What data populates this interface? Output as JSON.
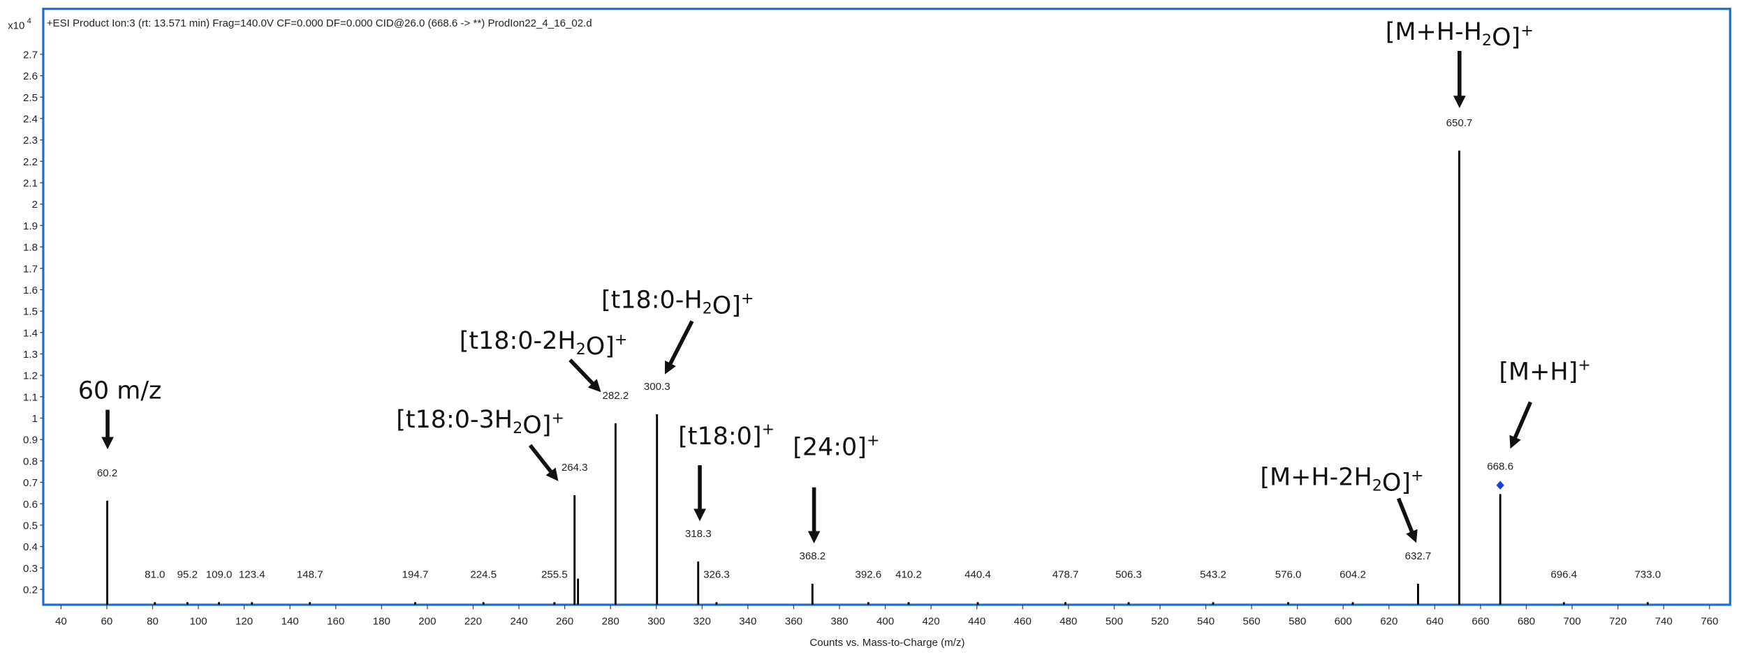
{
  "chart_data": {
    "type": "spectrum",
    "header": "+ESI Product Ion:3 (rt: 13.571 min) Frag=140.0V CF=0.000 DF=0.000 CID@26.0 (668.6 -> **) ProdIon22_4_16_02.d",
    "y_multiplier": {
      "base": "x10",
      "exponent": "4"
    },
    "x_label": "Counts vs. Mass-to-Charge (m/z)",
    "xlim": [
      32.25,
      769
    ],
    "ylim": [
      0.128,
      2.902
    ],
    "xticks": [
      40,
      60,
      80,
      100,
      120,
      140,
      160,
      180,
      200,
      220,
      240,
      260,
      280,
      300,
      320,
      340,
      360,
      380,
      400,
      420,
      440,
      460,
      480,
      500,
      520,
      540,
      560,
      580,
      600,
      620,
      640,
      660,
      680,
      700,
      720,
      740,
      760
    ],
    "yticks": [
      0.2,
      0.3,
      0.4,
      0.5,
      0.6,
      0.7,
      0.8,
      0.9,
      1,
      1.1,
      1.2,
      1.3,
      1.4,
      1.5,
      1.6,
      1.7,
      1.8,
      1.9,
      2,
      2.1,
      2.2,
      2.3,
      2.4,
      2.5,
      2.6,
      2.7
    ],
    "color": "#000000",
    "frame_color": "#1f6fc5",
    "x": [
      60.2,
      81.0,
      95.2,
      109.0,
      123.4,
      148.7,
      194.7,
      224.5,
      255.5,
      264.3,
      265.8,
      282.2,
      300.3,
      318.3,
      326.3,
      368.2,
      392.6,
      410.2,
      440.4,
      478.7,
      506.3,
      543.2,
      576.0,
      604.2,
      632.7,
      650.7,
      668.6,
      696.4,
      733.0
    ],
    "x_labels": [
      "60.2",
      "81.0",
      "95.2",
      "109.0",
      "123.4",
      "148.7",
      "194.7",
      "224.5",
      "255.5",
      "264.3",
      null,
      "282.2",
      "300.3",
      "318.3",
      "326.3",
      "368.2",
      "392.6",
      "410.2",
      "440.4",
      "478.7",
      "506.3",
      "543.2",
      "576.0",
      "604.2",
      "632.7",
      "650.7",
      "668.6",
      "696.4",
      "733.0"
    ],
    "values": [
      0.614,
      0.14,
      0.14,
      0.14,
      0.14,
      0.14,
      0.14,
      0.14,
      0.14,
      0.64,
      0.25,
      0.976,
      1.018,
      0.33,
      0.14,
      0.226,
      0.14,
      0.14,
      0.14,
      0.14,
      0.14,
      0.14,
      0.14,
      0.14,
      0.226,
      2.25,
      0.645,
      0.14,
      0.14
    ],
    "precursor": {
      "x": 668.6,
      "color": "#1a3fd6"
    },
    "annotations": [
      {
        "runs": [
          {
            "text": "60 m/z"
          }
        ]
      },
      {
        "runs": [
          {
            "text": "[t18:0-3H"
          },
          {
            "sub": "2"
          },
          {
            "text": "O]"
          },
          {
            "sup": "+"
          }
        ]
      },
      {
        "runs": [
          {
            "text": "[t18:0-2H"
          },
          {
            "sub": "2"
          },
          {
            "text": "O]"
          },
          {
            "sup": "+"
          }
        ]
      },
      {
        "runs": [
          {
            "text": "[t18:0-H"
          },
          {
            "sub": "2"
          },
          {
            "text": "O]"
          },
          {
            "sup": "+"
          }
        ]
      },
      {
        "runs": [
          {
            "text": "[t18:0]"
          },
          {
            "sup": "+"
          }
        ]
      },
      {
        "runs": [
          {
            "text": "[24:0]"
          },
          {
            "sup": "+"
          }
        ]
      },
      {
        "runs": [
          {
            "text": "[M+H-2H"
          },
          {
            "sub": "2"
          },
          {
            "text": "O]"
          },
          {
            "sup": "+"
          }
        ]
      },
      {
        "runs": [
          {
            "text": "[M+H-H"
          },
          {
            "sub": "2"
          },
          {
            "text": "O]"
          },
          {
            "sup": "+"
          }
        ]
      },
      {
        "runs": [
          {
            "text": "[M+H]"
          },
          {
            "sup": "+"
          }
        ]
      }
    ]
  }
}
